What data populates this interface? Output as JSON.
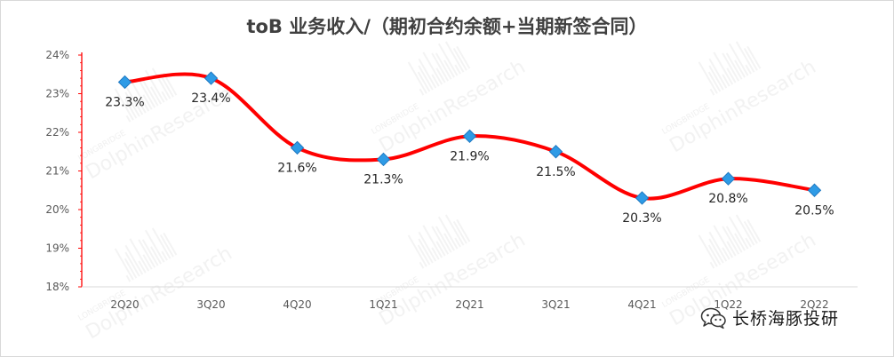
{
  "chart_data": {
    "type": "line",
    "title": "toB 业务收入/（期初合约余额+当期新签合同）",
    "categories": [
      "2Q20",
      "3Q20",
      "4Q20",
      "1Q21",
      "2Q21",
      "3Q21",
      "4Q21",
      "1Q22",
      "2Q22"
    ],
    "series": [
      {
        "values": [
          23.3,
          23.4,
          21.6,
          21.3,
          21.9,
          21.5,
          20.3,
          20.8,
          20.5
        ],
        "data_labels": [
          "23.3%",
          "23.4%",
          "21.6%",
          "21.3%",
          "21.9%",
          "21.5%",
          "20.3%",
          "20.8%",
          "20.5%"
        ],
        "line_color": "#ff0000",
        "marker_color": "#2e9be6",
        "marker": "diamond"
      }
    ],
    "ylim": [
      18,
      24
    ],
    "yticks": [
      "18%",
      "19%",
      "20%",
      "21%",
      "22%",
      "23%",
      "24%"
    ],
    "xlabel": "",
    "ylabel": "",
    "grid": false,
    "legend": "none"
  },
  "watermark": {
    "top": "LONGBRIDGE",
    "main": "DolphinResearch"
  },
  "footer": {
    "brand": "长桥海豚投研",
    "icon": "wechat-icon"
  }
}
